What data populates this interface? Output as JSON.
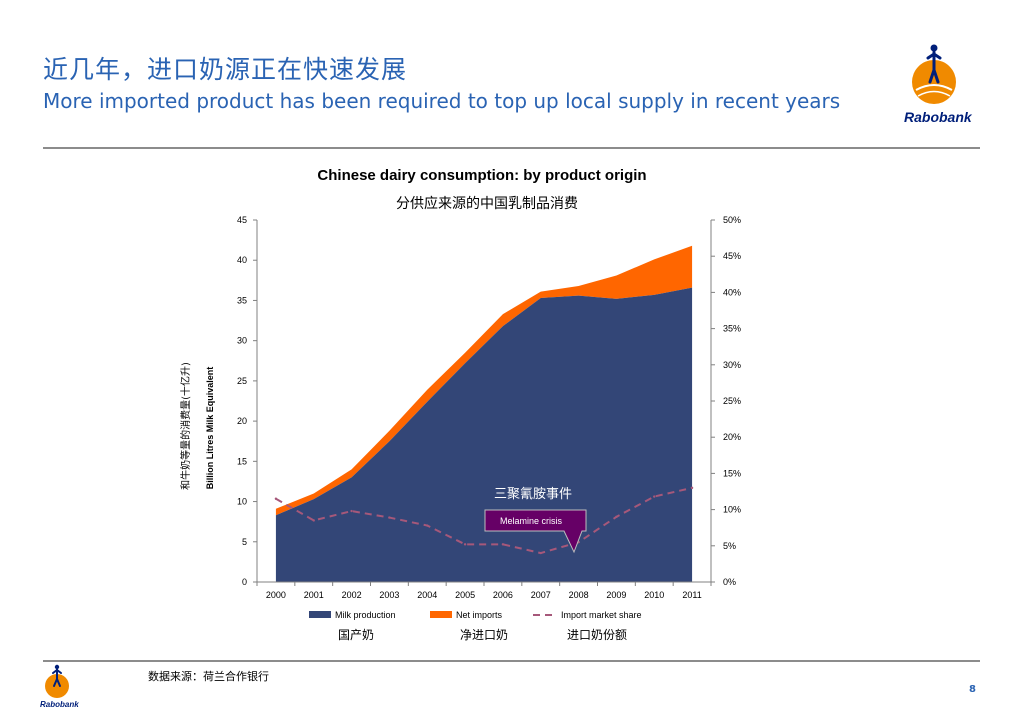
{
  "slide": {
    "title_cn": "近几年，进口奶源正在快速发展",
    "title_en": "More imported product has been required to top up local supply in recent years",
    "brand": "Rabobank",
    "source": "数据来源：荷兰合作银行",
    "page_number": "8"
  },
  "colors": {
    "title_blue": "#2a63b3",
    "milk_production": "#334677",
    "net_imports": "#ff6600",
    "import_share": "#a6587a",
    "callout": "#660066",
    "brand_orange": "#f08a00",
    "brand_blue": "#001f7a"
  },
  "chart_data": {
    "type": "area",
    "title": "Chinese dairy consumption: by product origin",
    "subtitle": "分供应来源的中国乳制品消费",
    "ylabel": "Billion Litres Milk Equivalent",
    "ylabel_cn": "和牛奶等量的消费量(十亿升)",
    "x": [
      "2000",
      "2001",
      "2002",
      "2003",
      "2004",
      "2005",
      "2006",
      "2007",
      "2008",
      "2009",
      "2010",
      "2011"
    ],
    "ylim": [
      0,
      45
    ],
    "yticks": [
      "0",
      "5",
      "10",
      "15",
      "20",
      "25",
      "30",
      "35",
      "40",
      "45"
    ],
    "y2lim": [
      0,
      50
    ],
    "y2ticks": [
      "0%",
      "5%",
      "10%",
      "15%",
      "20%",
      "25%",
      "30%",
      "35%",
      "40%",
      "45%",
      "50%"
    ],
    "series": [
      {
        "name": "Milk production",
        "name_cn": "国产奶",
        "kind": "area",
        "stack": true,
        "axis": "left",
        "values": [
          8.3,
          10.3,
          13.0,
          17.5,
          22.4,
          27.2,
          31.8,
          35.3,
          35.6,
          35.2,
          35.7,
          36.6
        ]
      },
      {
        "name": "Net imports",
        "name_cn": "净进口奶",
        "kind": "area",
        "stack": true,
        "axis": "left",
        "values": [
          0.8,
          0.7,
          1.0,
          1.3,
          1.5,
          1.3,
          1.5,
          0.8,
          1.2,
          2.9,
          4.4,
          5.2
        ]
      },
      {
        "name": "Import market share",
        "name_cn": "进口奶份额",
        "kind": "line",
        "dashed": true,
        "axis": "right",
        "values": [
          11.5,
          8.5,
          9.8,
          8.9,
          7.8,
          5.2,
          5.2,
          4.0,
          5.5,
          9.0,
          11.8,
          13.0
        ]
      }
    ],
    "annotation": {
      "label_cn": "三聚氰胺事件",
      "label_en": "Melamine crisis",
      "x": "2008"
    },
    "grid": false,
    "legend_position": "bottom"
  }
}
